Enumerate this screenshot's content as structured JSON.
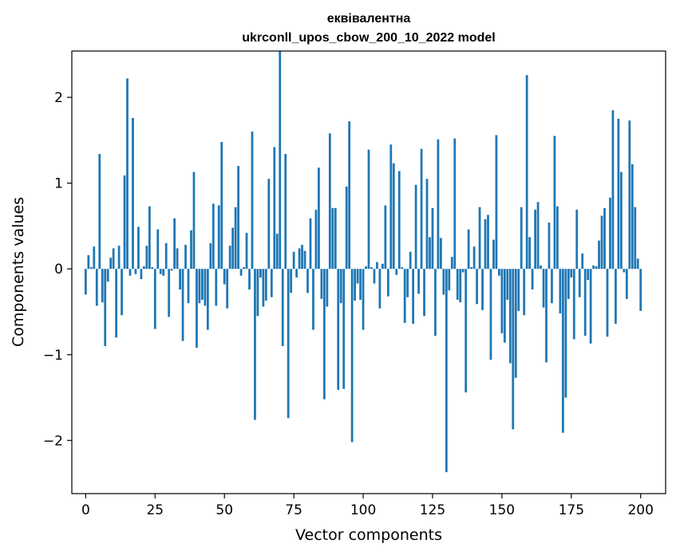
{
  "chart_data": {
    "type": "bar",
    "title_line1": "еквівалентна",
    "title_line2": "ukrconll_upos_cbow_200_10_2022 model",
    "xlabel": "Vector components",
    "ylabel": "Components values",
    "xlim": [
      -5,
      209
    ],
    "ylim": [
      -2.62,
      2.54
    ],
    "xticks": [
      0,
      25,
      50,
      75,
      100,
      125,
      150,
      175,
      200
    ],
    "yticks": [
      -2,
      -1,
      0,
      1,
      2
    ],
    "ytick_labels": [
      "−2",
      "−1",
      "0",
      "1",
      "2"
    ],
    "grid": false,
    "bar_color": "#1f77b4",
    "values": [
      -0.3,
      0.16,
      0.02,
      0.26,
      -0.43,
      1.34,
      -0.39,
      -0.9,
      -0.15,
      0.13,
      0.24,
      -0.8,
      0.27,
      -0.54,
      1.09,
      2.22,
      -0.08,
      1.76,
      -0.06,
      0.49,
      -0.12,
      0.03,
      0.27,
      0.73,
      0.02,
      -0.7,
      0.46,
      -0.06,
      -0.08,
      0.3,
      -0.56,
      -0.02,
      0.59,
      0.24,
      -0.24,
      -0.84,
      0.28,
      -0.4,
      0.45,
      1.13,
      -0.92,
      -0.4,
      -0.36,
      -0.43,
      -0.71,
      0.3,
      0.76,
      -0.43,
      0.74,
      1.48,
      -0.18,
      -0.46,
      0.27,
      0.48,
      0.72,
      1.2,
      -0.08,
      0.02,
      0.42,
      -0.24,
      1.6,
      -1.76,
      -0.55,
      -0.1,
      -0.44,
      -0.37,
      1.05,
      -0.33,
      1.42,
      0.41,
      2.54,
      -0.9,
      1.34,
      -1.74,
      -0.28,
      0.2,
      -0.1,
      0.24,
      0.28,
      0.21,
      -0.28,
      0.59,
      -0.71,
      0.69,
      1.18,
      -0.35,
      -1.52,
      -0.44,
      1.58,
      0.71,
      0.71,
      -1.41,
      -0.4,
      -1.4,
      0.96,
      1.72,
      -2.02,
      -0.37,
      -0.17,
      -0.36,
      -0.71,
      0.03,
      1.39,
      0.02,
      -0.17,
      0.08,
      -0.46,
      0.06,
      0.74,
      -0.32,
      1.45,
      1.23,
      -0.07,
      1.14,
      0.02,
      -0.63,
      -0.33,
      0.2,
      -0.64,
      0.98,
      -0.29,
      1.4,
      -0.55,
      1.05,
      0.37,
      0.71,
      -0.78,
      1.51,
      0.36,
      -0.3,
      -2.37,
      -0.25,
      0.14,
      1.52,
      -0.36,
      -0.39,
      -0.04,
      -1.44,
      0.46,
      0.02,
      0.26,
      -0.41,
      0.72,
      -0.48,
      0.58,
      0.63,
      -1.06,
      0.34,
      1.56,
      -0.08,
      -0.75,
      -0.86,
      -0.36,
      -1.1,
      -1.87,
      -1.27,
      -0.49,
      0.72,
      -0.54,
      2.26,
      0.37,
      -0.24,
      0.69,
      0.78,
      0.04,
      -0.45,
      -1.09,
      0.54,
      -0.4,
      1.55,
      0.73,
      -0.52,
      -1.91,
      -1.5,
      -0.35,
      -0.1,
      -0.82,
      0.69,
      -0.33,
      0.18,
      -0.78,
      -0.13,
      -0.87,
      0.04,
      0.03,
      0.33,
      0.62,
      0.71,
      -0.79,
      0.83,
      1.85,
      -0.64,
      1.75,
      1.13,
      -0.04,
      -0.35,
      1.73,
      1.22,
      0.72,
      0.12,
      -0.49
    ]
  }
}
